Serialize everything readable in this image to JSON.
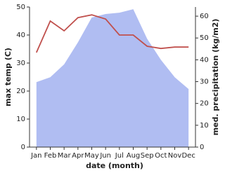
{
  "chart_data": {
    "type": "line-area",
    "x_label": "date (month)",
    "y_label": "max temp (C)",
    "y2_label": "med. precipitation (kg/m2)",
    "categories": [
      "Jan",
      "Feb",
      "Mar",
      "Apr",
      "May",
      "Jun",
      "Jul",
      "Aug",
      "Sep",
      "Oct",
      "Nov",
      "Dec"
    ],
    "ylim": [
      0,
      50
    ],
    "yticks": [
      0,
      10,
      20,
      30,
      40,
      50
    ],
    "y2lim": [
      0,
      64.2
    ],
    "y2ticks": [
      0,
      10,
      20,
      30,
      40,
      50,
      60
    ],
    "series": [
      {
        "name": "med. precipitation",
        "color": "#b0bdf2",
        "axis": "y2",
        "kind": "area",
        "values": [
          29.8,
          32,
          37.9,
          48,
          59.4,
          61,
          61.6,
          63.2,
          49.7,
          40,
          32,
          26.6
        ]
      },
      {
        "name": "max temp",
        "color": "#c0504d",
        "axis": "y",
        "kind": "line",
        "values": [
          33.75,
          45,
          41.5,
          46.2,
          47.2,
          45.7,
          40,
          40,
          36,
          35.2,
          35.7,
          35.7
        ]
      }
    ]
  }
}
